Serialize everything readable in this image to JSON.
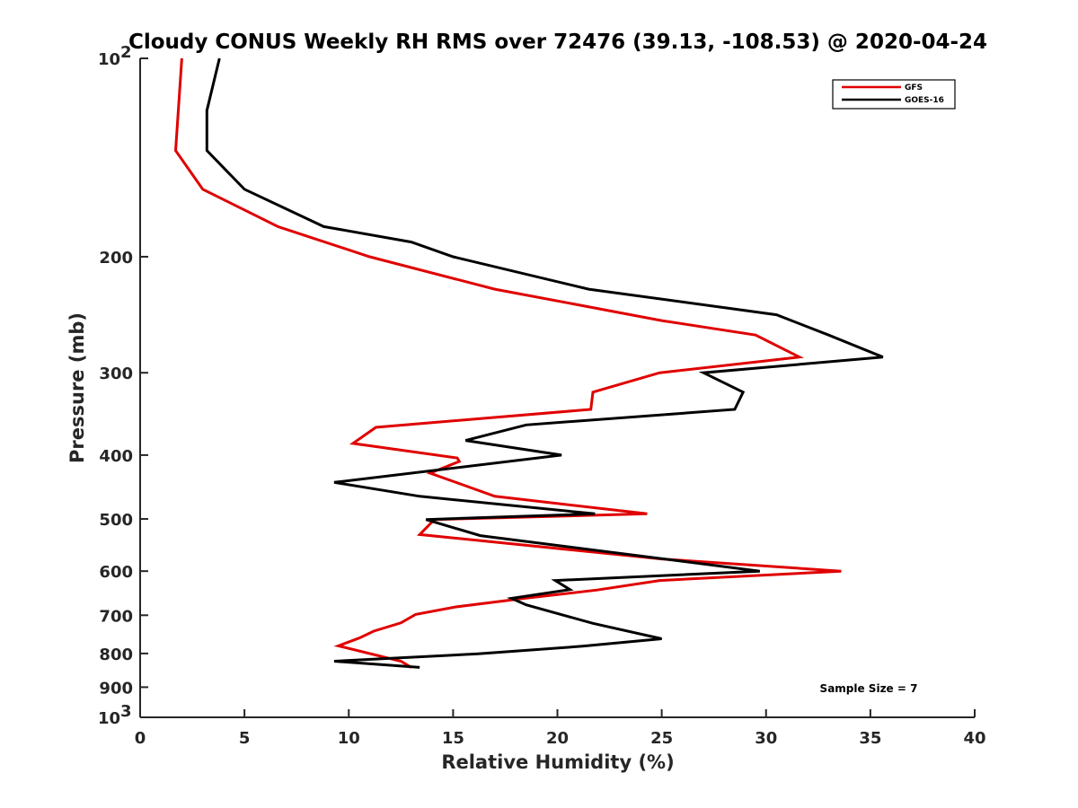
{
  "chart_data": {
    "type": "line",
    "title": "Cloudy CONUS Weekly RH RMS over 72476 (39.13, -108.53) @ 2020-04-24",
    "xlabel": "Relative Humidity (%)",
    "ylabel": "Pressure (mb)",
    "xlim": [
      0,
      40
    ],
    "ylim": [
      100,
      1000
    ],
    "y_scale": "log",
    "y_reversed": true,
    "grid": false,
    "legend_position": "top-right",
    "annotation": "Sample Size = 7",
    "x_ticks": [
      {
        "value": 0,
        "label": "0"
      },
      {
        "value": 5,
        "label": "5"
      },
      {
        "value": 10,
        "label": "10"
      },
      {
        "value": 15,
        "label": "15"
      },
      {
        "value": 20,
        "label": "20"
      },
      {
        "value": 25,
        "label": "25"
      },
      {
        "value": 30,
        "label": "30"
      },
      {
        "value": 35,
        "label": "35"
      },
      {
        "value": 40,
        "label": "40"
      }
    ],
    "y_ticks": [
      {
        "value": 100,
        "label": "10",
        "sup": "2"
      },
      {
        "value": 200,
        "label": "200",
        "sup": ""
      },
      {
        "value": 300,
        "label": "300",
        "sup": ""
      },
      {
        "value": 400,
        "label": "400",
        "sup": ""
      },
      {
        "value": 500,
        "label": "500",
        "sup": ""
      },
      {
        "value": 600,
        "label": "600",
        "sup": ""
      },
      {
        "value": 700,
        "label": "700",
        "sup": ""
      },
      {
        "value": 800,
        "label": "800",
        "sup": ""
      },
      {
        "value": 900,
        "label": "900",
        "sup": ""
      },
      {
        "value": 1000,
        "label": "10",
        "sup": "3"
      }
    ],
    "series": [
      {
        "name": "GFS",
        "color": "#e00000",
        "points": [
          [
            2.0,
            100
          ],
          [
            1.7,
            138
          ],
          [
            3.0,
            158
          ],
          [
            6.6,
            180
          ],
          [
            11.0,
            200
          ],
          [
            17.0,
            224
          ],
          [
            25.0,
            250
          ],
          [
            29.5,
            263
          ],
          [
            31.6,
            284
          ],
          [
            24.9,
            300
          ],
          [
            21.7,
            321
          ],
          [
            21.6,
            341
          ],
          [
            11.3,
            363
          ],
          [
            10.2,
            384
          ],
          [
            15.2,
            404
          ],
          [
            15.3,
            409
          ],
          [
            13.9,
            426
          ],
          [
            17.0,
            462
          ],
          [
            24.3,
            491
          ],
          [
            14.1,
            501
          ],
          [
            13.4,
            528
          ],
          [
            25.0,
            575
          ],
          [
            33.6,
            600
          ],
          [
            24.9,
            620
          ],
          [
            21.9,
            641
          ],
          [
            18.4,
            660
          ],
          [
            15.1,
            680
          ],
          [
            13.2,
            698
          ],
          [
            12.5,
            719
          ],
          [
            11.2,
            740
          ],
          [
            10.5,
            758
          ],
          [
            9.5,
            779
          ],
          [
            12.5,
            822
          ],
          [
            13.0,
            840
          ]
        ]
      },
      {
        "name": "GOES-16",
        "color": "#000000",
        "points": [
          [
            3.8,
            100
          ],
          [
            3.2,
            120
          ],
          [
            3.2,
            138
          ],
          [
            5.0,
            158
          ],
          [
            8.8,
            180
          ],
          [
            13.0,
            190
          ],
          [
            15.0,
            200
          ],
          [
            21.5,
            224
          ],
          [
            30.5,
            245
          ],
          [
            33.0,
            263
          ],
          [
            35.6,
            284
          ],
          [
            27.0,
            300
          ],
          [
            28.9,
            321
          ],
          [
            28.5,
            341
          ],
          [
            18.5,
            360
          ],
          [
            15.6,
            380
          ],
          [
            20.2,
            400
          ],
          [
            9.3,
            440
          ],
          [
            13.4,
            462
          ],
          [
            21.8,
            491
          ],
          [
            13.7,
            501
          ],
          [
            16.3,
            530
          ],
          [
            29.7,
            600
          ],
          [
            19.9,
            620
          ],
          [
            20.6,
            640
          ],
          [
            17.8,
            660
          ],
          [
            18.5,
            675
          ],
          [
            20.3,
            700
          ],
          [
            21.7,
            720
          ],
          [
            25.0,
            760
          ],
          [
            21.2,
            780
          ],
          [
            16.2,
            801
          ],
          [
            9.3,
            822
          ],
          [
            13.4,
            840
          ]
        ]
      }
    ]
  }
}
